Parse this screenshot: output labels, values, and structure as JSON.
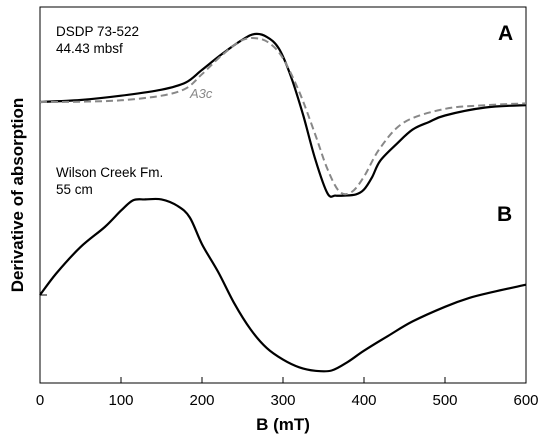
{
  "chart_data": {
    "type": "line",
    "xlabel": "B (mT)",
    "ylabel": "Derivative of absorption",
    "xlim": [
      0,
      600
    ],
    "x_ticks": [
      "0",
      "100",
      "200",
      "300",
      "400",
      "500",
      "600"
    ],
    "grid": false,
    "legend": "none",
    "panels": [
      {
        "label": "A",
        "annotation": [
          "DSDP 73-522",
          "44.43 mbsf"
        ],
        "series": [
          {
            "style": "solid",
            "color": "#000000",
            "x": [
              0,
              50,
              100,
              150,
              180,
              200,
              225,
              250,
              265,
              280,
              295,
              310,
              325,
              340,
              355,
              365,
              375,
              390,
              400,
              410,
              420,
              440,
              460,
              480,
              500,
              550,
              600
            ],
            "y": [
              0.0,
              0.07,
              0.22,
              0.43,
              0.68,
              1.12,
              1.68,
              2.17,
              2.37,
              2.27,
              1.86,
              0.87,
              -0.47,
              -2.01,
              -3.19,
              -3.26,
              -3.26,
              -3.22,
              -3.05,
              -2.62,
              -2.05,
              -1.47,
              -0.96,
              -0.7,
              -0.47,
              -0.19,
              -0.11
            ]
          },
          {
            "name": "A3c",
            "style": "dashed",
            "color": "#888888",
            "x": [
              0,
              50,
              100,
              150,
              180,
              200,
              225,
              250,
              270,
              285,
              300,
              320,
              340,
              355,
              370,
              385,
              400,
              420,
              450,
              500,
              550,
              600
            ],
            "y": [
              0.0,
              0.01,
              0.06,
              0.22,
              0.47,
              0.97,
              1.64,
              2.16,
              2.21,
              2.01,
              1.52,
              0.36,
              -1.15,
              -2.35,
              -3.13,
              -3.13,
              -2.6,
              -1.6,
              -0.7,
              -0.24,
              -0.11,
              -0.05
            ]
          }
        ]
      },
      {
        "label": "B",
        "annotation": [
          "Wilson Creek Fm.",
          "55 cm"
        ],
        "series": [
          {
            "style": "solid",
            "color": "#000000",
            "x": [
              0,
              20,
              50,
              80,
              100,
              115,
              130,
              150,
              170,
              185,
              200,
              220,
              240,
              260,
              280,
              300,
              320,
              340,
              360,
              380,
              400,
              430,
              460,
              500,
              530,
              560,
              600
            ],
            "y": [
              0.0,
              0.75,
              1.67,
              2.37,
              2.94,
              3.3,
              3.33,
              3.33,
              3.1,
              2.7,
              1.77,
              0.8,
              -0.3,
              -1.2,
              -1.85,
              -2.25,
              -2.52,
              -2.64,
              -2.63,
              -2.33,
              -1.94,
              -1.42,
              -0.92,
              -0.41,
              -0.1,
              0.11,
              0.36
            ]
          }
        ]
      }
    ]
  }
}
